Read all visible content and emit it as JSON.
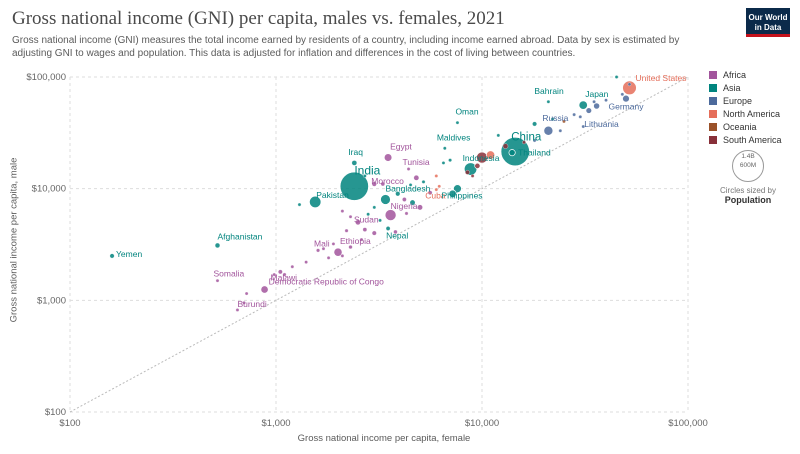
{
  "header": {
    "title": "Gross national income (GNI) per capita, males vs. females, 2021",
    "subtitle": "Gross national income (GNI) measures the total income earned by residents of a country, including income earned abroad. Data by sex is estimated by adjusting GNI to wages and population. This data is adjusted for inflation and differences in the cost of living between countries.",
    "logo_line1": "Our World",
    "logo_line2": "in Data"
  },
  "legend": {
    "items": [
      {
        "label": "Africa",
        "color": "#a2559c"
      },
      {
        "label": "Asia",
        "color": "#00847e"
      },
      {
        "label": "Europe",
        "color": "#4c6a9c"
      },
      {
        "label": "North America",
        "color": "#e56e5a"
      },
      {
        "label": "Oceania",
        "color": "#9a5129"
      },
      {
        "label": "South America",
        "color": "#883039"
      }
    ],
    "size_caption_1": "1.4B",
    "size_caption_2": "600M",
    "size_note": "Circles sized by",
    "size_variable": "Population"
  },
  "chart_data": {
    "type": "scatter",
    "title": "Gross national income (GNI) per capita, males vs. females, 2021",
    "xlabel": "Gross national income per capita, female",
    "ylabel": "Gross national income per capita, male",
    "xscale": "log",
    "yscale": "log",
    "xlim": [
      100,
      100000
    ],
    "ylim": [
      100,
      100000
    ],
    "x_ticks": [
      "$100",
      "$1,000",
      "$10,000",
      "$100,000"
    ],
    "y_ticks": [
      "$100",
      "$1,000",
      "$10,000",
      "$100,000"
    ],
    "reference_line": "y = x",
    "grid": true,
    "legend_position": "right",
    "points": [
      {
        "label": "United States",
        "x": 52000,
        "y": 80000,
        "region": "North America",
        "pop": 330
      },
      {
        "label": "Germany",
        "x": 50000,
        "y": 64000,
        "region": "Europe",
        "pop": 83
      },
      {
        "label": "Japan",
        "x": 31000,
        "y": 56000,
        "region": "Asia",
        "pop": 126
      },
      {
        "label": "Lithuania",
        "x": 30000,
        "y": 44000,
        "region": "Europe",
        "pop": 3
      },
      {
        "label": "Bahrain",
        "x": 21000,
        "y": 60000,
        "region": "Asia",
        "pop": 2
      },
      {
        "label": "Russia",
        "x": 21000,
        "y": 33000,
        "region": "Europe",
        "pop": 144
      },
      {
        "label": "Oman",
        "x": 7600,
        "y": 39000,
        "region": "Asia",
        "pop": 5
      },
      {
        "label": "China",
        "x": 14500,
        "y": 21500,
        "region": "Asia",
        "pop": 1410
      },
      {
        "label": "Thailand",
        "x": 14000,
        "y": 21000,
        "region": "Asia",
        "pop": 70
      },
      {
        "label": "Maldives",
        "x": 6600,
        "y": 23000,
        "region": "Asia",
        "pop": 1
      },
      {
        "label": "Indonesia",
        "x": 8800,
        "y": 15000,
        "region": "Asia",
        "pop": 274
      },
      {
        "label": "Cuba",
        "x": 6200,
        "y": 10500,
        "region": "North America",
        "pop": 11
      },
      {
        "label": "Philippines",
        "x": 7600,
        "y": 10000,
        "region": "Asia",
        "pop": 111
      },
      {
        "label": "Egypt",
        "x": 3500,
        "y": 19000,
        "region": "Africa",
        "pop": 104
      },
      {
        "label": "Iraq",
        "x": 2400,
        "y": 17000,
        "region": "Asia",
        "pop": 43
      },
      {
        "label": "India",
        "x": 2400,
        "y": 10500,
        "region": "Asia",
        "pop": 1400
      },
      {
        "label": "Tunisia",
        "x": 4400,
        "y": 15000,
        "region": "Africa",
        "pop": 12
      },
      {
        "label": "Morocco",
        "x": 3000,
        "y": 11000,
        "region": "Africa",
        "pop": 37
      },
      {
        "label": "Pakistan",
        "x": 1550,
        "y": 7600,
        "region": "Asia",
        "pop": 231
      },
      {
        "label": "Bangladesh",
        "x": 3400,
        "y": 8000,
        "region": "Asia",
        "pop": 169
      },
      {
        "label": "Sudan",
        "x": 2500,
        "y": 5000,
        "region": "Africa",
        "pop": 45
      },
      {
        "label": "Nigeria",
        "x": 3600,
        "y": 5800,
        "region": "Africa",
        "pop": 213
      },
      {
        "label": "Nepal",
        "x": 3500,
        "y": 4400,
        "region": "Asia",
        "pop": 30
      },
      {
        "label": "Afghanistan",
        "x": 520,
        "y": 3100,
        "region": "Asia",
        "pop": 40
      },
      {
        "label": "Yemen",
        "x": 160,
        "y": 2500,
        "region": "Asia",
        "pop": 33
      },
      {
        "label": "Mali",
        "x": 1600,
        "y": 2800,
        "region": "Africa",
        "pop": 21
      },
      {
        "label": "Ethiopia",
        "x": 2000,
        "y": 2700,
        "region": "Africa",
        "pop": 120
      },
      {
        "label": "Malawi",
        "x": 1100,
        "y": 1700,
        "region": "Africa",
        "pop": 20
      },
      {
        "label": "Somalia",
        "x": 520,
        "y": 1500,
        "region": "Africa",
        "pop": 17
      },
      {
        "label": "Democratic Republic of Congo",
        "x": 880,
        "y": 1250,
        "region": "Africa",
        "pop": 95
      },
      {
        "label": "Burundi",
        "x": 650,
        "y": 820,
        "region": "Africa",
        "pop": 12
      },
      {
        "label": "",
        "x": 45000,
        "y": 100000,
        "region": "Asia",
        "pop": 1
      },
      {
        "label": "",
        "x": 52000,
        "y": 86000,
        "region": "Europe",
        "pop": 9
      },
      {
        "label": "",
        "x": 48000,
        "y": 70000,
        "region": "Europe",
        "pop": 5
      },
      {
        "label": "",
        "x": 40000,
        "y": 62000,
        "region": "Europe",
        "pop": 10
      },
      {
        "label": "",
        "x": 36000,
        "y": 55000,
        "region": "Europe",
        "pop": 67
      },
      {
        "label": "",
        "x": 33000,
        "y": 50000,
        "region": "Europe",
        "pop": 59
      },
      {
        "label": "",
        "x": 28000,
        "y": 46000,
        "region": "Europe",
        "pop": 10
      },
      {
        "label": "",
        "x": 25000,
        "y": 40000,
        "region": "Oceania",
        "pop": 5
      },
      {
        "label": "",
        "x": 22000,
        "y": 42000,
        "region": "Asia",
        "pop": 10
      },
      {
        "label": "",
        "x": 35000,
        "y": 60000,
        "region": "Europe",
        "pop": 5
      },
      {
        "label": "",
        "x": 31000,
        "y": 36000,
        "region": "Europe",
        "pop": 6
      },
      {
        "label": "",
        "x": 24000,
        "y": 33000,
        "region": "Europe",
        "pop": 2
      },
      {
        "label": "",
        "x": 18000,
        "y": 38000,
        "region": "Asia",
        "pop": 33
      },
      {
        "label": "",
        "x": 18000,
        "y": 27000,
        "region": "Europe",
        "pop": 9
      },
      {
        "label": "",
        "x": 16000,
        "y": 26000,
        "region": "South America",
        "pop": 19
      },
      {
        "label": "",
        "x": 13000,
        "y": 24000,
        "region": "South America",
        "pop": 45
      },
      {
        "label": "",
        "x": 12000,
        "y": 30000,
        "region": "Asia",
        "pop": 4
      },
      {
        "label": "",
        "x": 11000,
        "y": 20000,
        "region": "North America",
        "pop": 126
      },
      {
        "label": "",
        "x": 10000,
        "y": 19000,
        "region": "South America",
        "pop": 214
      },
      {
        "label": "",
        "x": 9500,
        "y": 16000,
        "region": "South America",
        "pop": 51
      },
      {
        "label": "",
        "x": 8500,
        "y": 14000,
        "region": "South America",
        "pop": 33
      },
      {
        "label": "",
        "x": 9000,
        "y": 13000,
        "region": "South America",
        "pop": 12
      },
      {
        "label": "",
        "x": 7000,
        "y": 18000,
        "region": "Asia",
        "pop": 19
      },
      {
        "label": "",
        "x": 6500,
        "y": 17000,
        "region": "Asia",
        "pop": 8
      },
      {
        "label": "",
        "x": 6000,
        "y": 13000,
        "region": "North America",
        "pop": 17
      },
      {
        "label": "",
        "x": 7200,
        "y": 9000,
        "region": "Asia",
        "pop": 98
      },
      {
        "label": "",
        "x": 4800,
        "y": 12500,
        "region": "Africa",
        "pop": 45
      },
      {
        "label": "",
        "x": 5200,
        "y": 11500,
        "region": "Asia",
        "pop": 19
      },
      {
        "label": "",
        "x": 4500,
        "y": 10800,
        "region": "Asia",
        "pop": 10
      },
      {
        "label": "",
        "x": 3900,
        "y": 9000,
        "region": "Asia",
        "pop": 35
      },
      {
        "label": "",
        "x": 3300,
        "y": 11000,
        "region": "Africa",
        "pop": 27
      },
      {
        "label": "",
        "x": 2700,
        "y": 13000,
        "region": "Asia",
        "pop": 10
      },
      {
        "label": "",
        "x": 5600,
        "y": 9200,
        "region": "Africa",
        "pop": 30
      },
      {
        "label": "",
        "x": 6000,
        "y": 9800,
        "region": "North America",
        "pop": 10
      },
      {
        "label": "",
        "x": 4200,
        "y": 8000,
        "region": "Africa",
        "pop": 30
      },
      {
        "label": "",
        "x": 4600,
        "y": 7500,
        "region": "Asia",
        "pop": 54
      },
      {
        "label": "",
        "x": 5000,
        "y": 6800,
        "region": "Africa",
        "pop": 55
      },
      {
        "label": "",
        "x": 3000,
        "y": 6800,
        "region": "Asia",
        "pop": 8
      },
      {
        "label": "",
        "x": 2800,
        "y": 5900,
        "region": "Asia",
        "pop": 12
      },
      {
        "label": "",
        "x": 2300,
        "y": 5600,
        "region": "Africa",
        "pop": 12
      },
      {
        "label": "",
        "x": 4300,
        "y": 6000,
        "region": "Africa",
        "pop": 19
      },
      {
        "label": "",
        "x": 3200,
        "y": 5200,
        "region": "Asia",
        "pop": 5
      },
      {
        "label": "",
        "x": 1300,
        "y": 7200,
        "region": "Asia",
        "pop": 10
      },
      {
        "label": "",
        "x": 2100,
        "y": 6300,
        "region": "Africa",
        "pop": 4
      },
      {
        "label": "",
        "x": 2700,
        "y": 4300,
        "region": "Africa",
        "pop": 28
      },
      {
        "label": "",
        "x": 3000,
        "y": 4000,
        "region": "Africa",
        "pop": 33
      },
      {
        "label": "",
        "x": 2200,
        "y": 4200,
        "region": "Africa",
        "pop": 20
      },
      {
        "label": "",
        "x": 2600,
        "y": 3500,
        "region": "Africa",
        "pop": 12
      },
      {
        "label": "",
        "x": 3800,
        "y": 4100,
        "region": "Africa",
        "pop": 26
      },
      {
        "label": "",
        "x": 1900,
        "y": 3200,
        "region": "Africa",
        "pop": 13
      },
      {
        "label": "",
        "x": 2300,
        "y": 3000,
        "region": "Africa",
        "pop": 24
      },
      {
        "label": "",
        "x": 1700,
        "y": 2900,
        "region": "Africa",
        "pop": 8
      },
      {
        "label": "",
        "x": 2100,
        "y": 2500,
        "region": "Africa",
        "pop": 17
      },
      {
        "label": "",
        "x": 1800,
        "y": 2400,
        "region": "Africa",
        "pop": 13
      },
      {
        "label": "",
        "x": 1400,
        "y": 2200,
        "region": "Africa",
        "pop": 15
      },
      {
        "label": "",
        "x": 1200,
        "y": 2000,
        "region": "Africa",
        "pop": 5
      },
      {
        "label": "",
        "x": 1050,
        "y": 1800,
        "region": "Africa",
        "pop": 31
      },
      {
        "label": "",
        "x": 980,
        "y": 1700,
        "region": "Africa",
        "pop": 8
      },
      {
        "label": "",
        "x": 720,
        "y": 1150,
        "region": "Africa",
        "pop": 5
      },
      {
        "label": "",
        "x": 700,
        "y": 950,
        "region": "Africa",
        "pop": 5
      }
    ]
  }
}
